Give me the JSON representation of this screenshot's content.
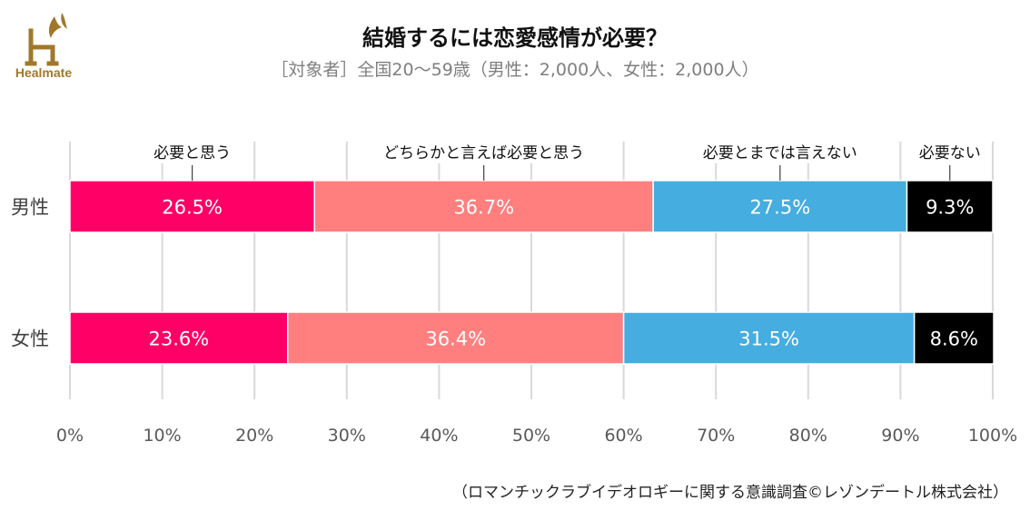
{
  "brand": {
    "name": "Healmate",
    "color": "#a0782b"
  },
  "title": "結婚するには恋愛感情が必要？",
  "subtitle": "［対象者］全国20～59歳（男性：2,000人、女性：2,000人）",
  "source": "（ロマンチックラブイデオロギーに関する意識調査©レゾンデートル株式会社）",
  "chart_data": {
    "type": "bar",
    "orientation": "horizontal",
    "stacked": true,
    "categories": [
      "男性",
      "女性"
    ],
    "series": [
      {
        "name": "必要と思う",
        "values": [
          26.5,
          23.6
        ],
        "color": "#ff0066",
        "label_color": "#ffffff"
      },
      {
        "name": "どちらかと言えば必要と思う",
        "values": [
          36.7,
          36.4
        ],
        "color": "#ff7f7f",
        "label_color": "#ffffff"
      },
      {
        "name": "必要とまでは言えない",
        "values": [
          27.5,
          31.5
        ],
        "color": "#45ade0",
        "label_color": "#ffffff"
      },
      {
        "name": "必要ない",
        "values": [
          9.3,
          8.6
        ],
        "color": "#000000",
        "label_color": "#ffffff"
      }
    ],
    "value_suffix": "%",
    "xlim": [
      0,
      100
    ],
    "xticks": [
      0,
      10,
      20,
      30,
      40,
      50,
      60,
      70,
      80,
      90,
      100
    ],
    "tick_suffix": "%",
    "grid": true,
    "legend": "callouts-top"
  }
}
